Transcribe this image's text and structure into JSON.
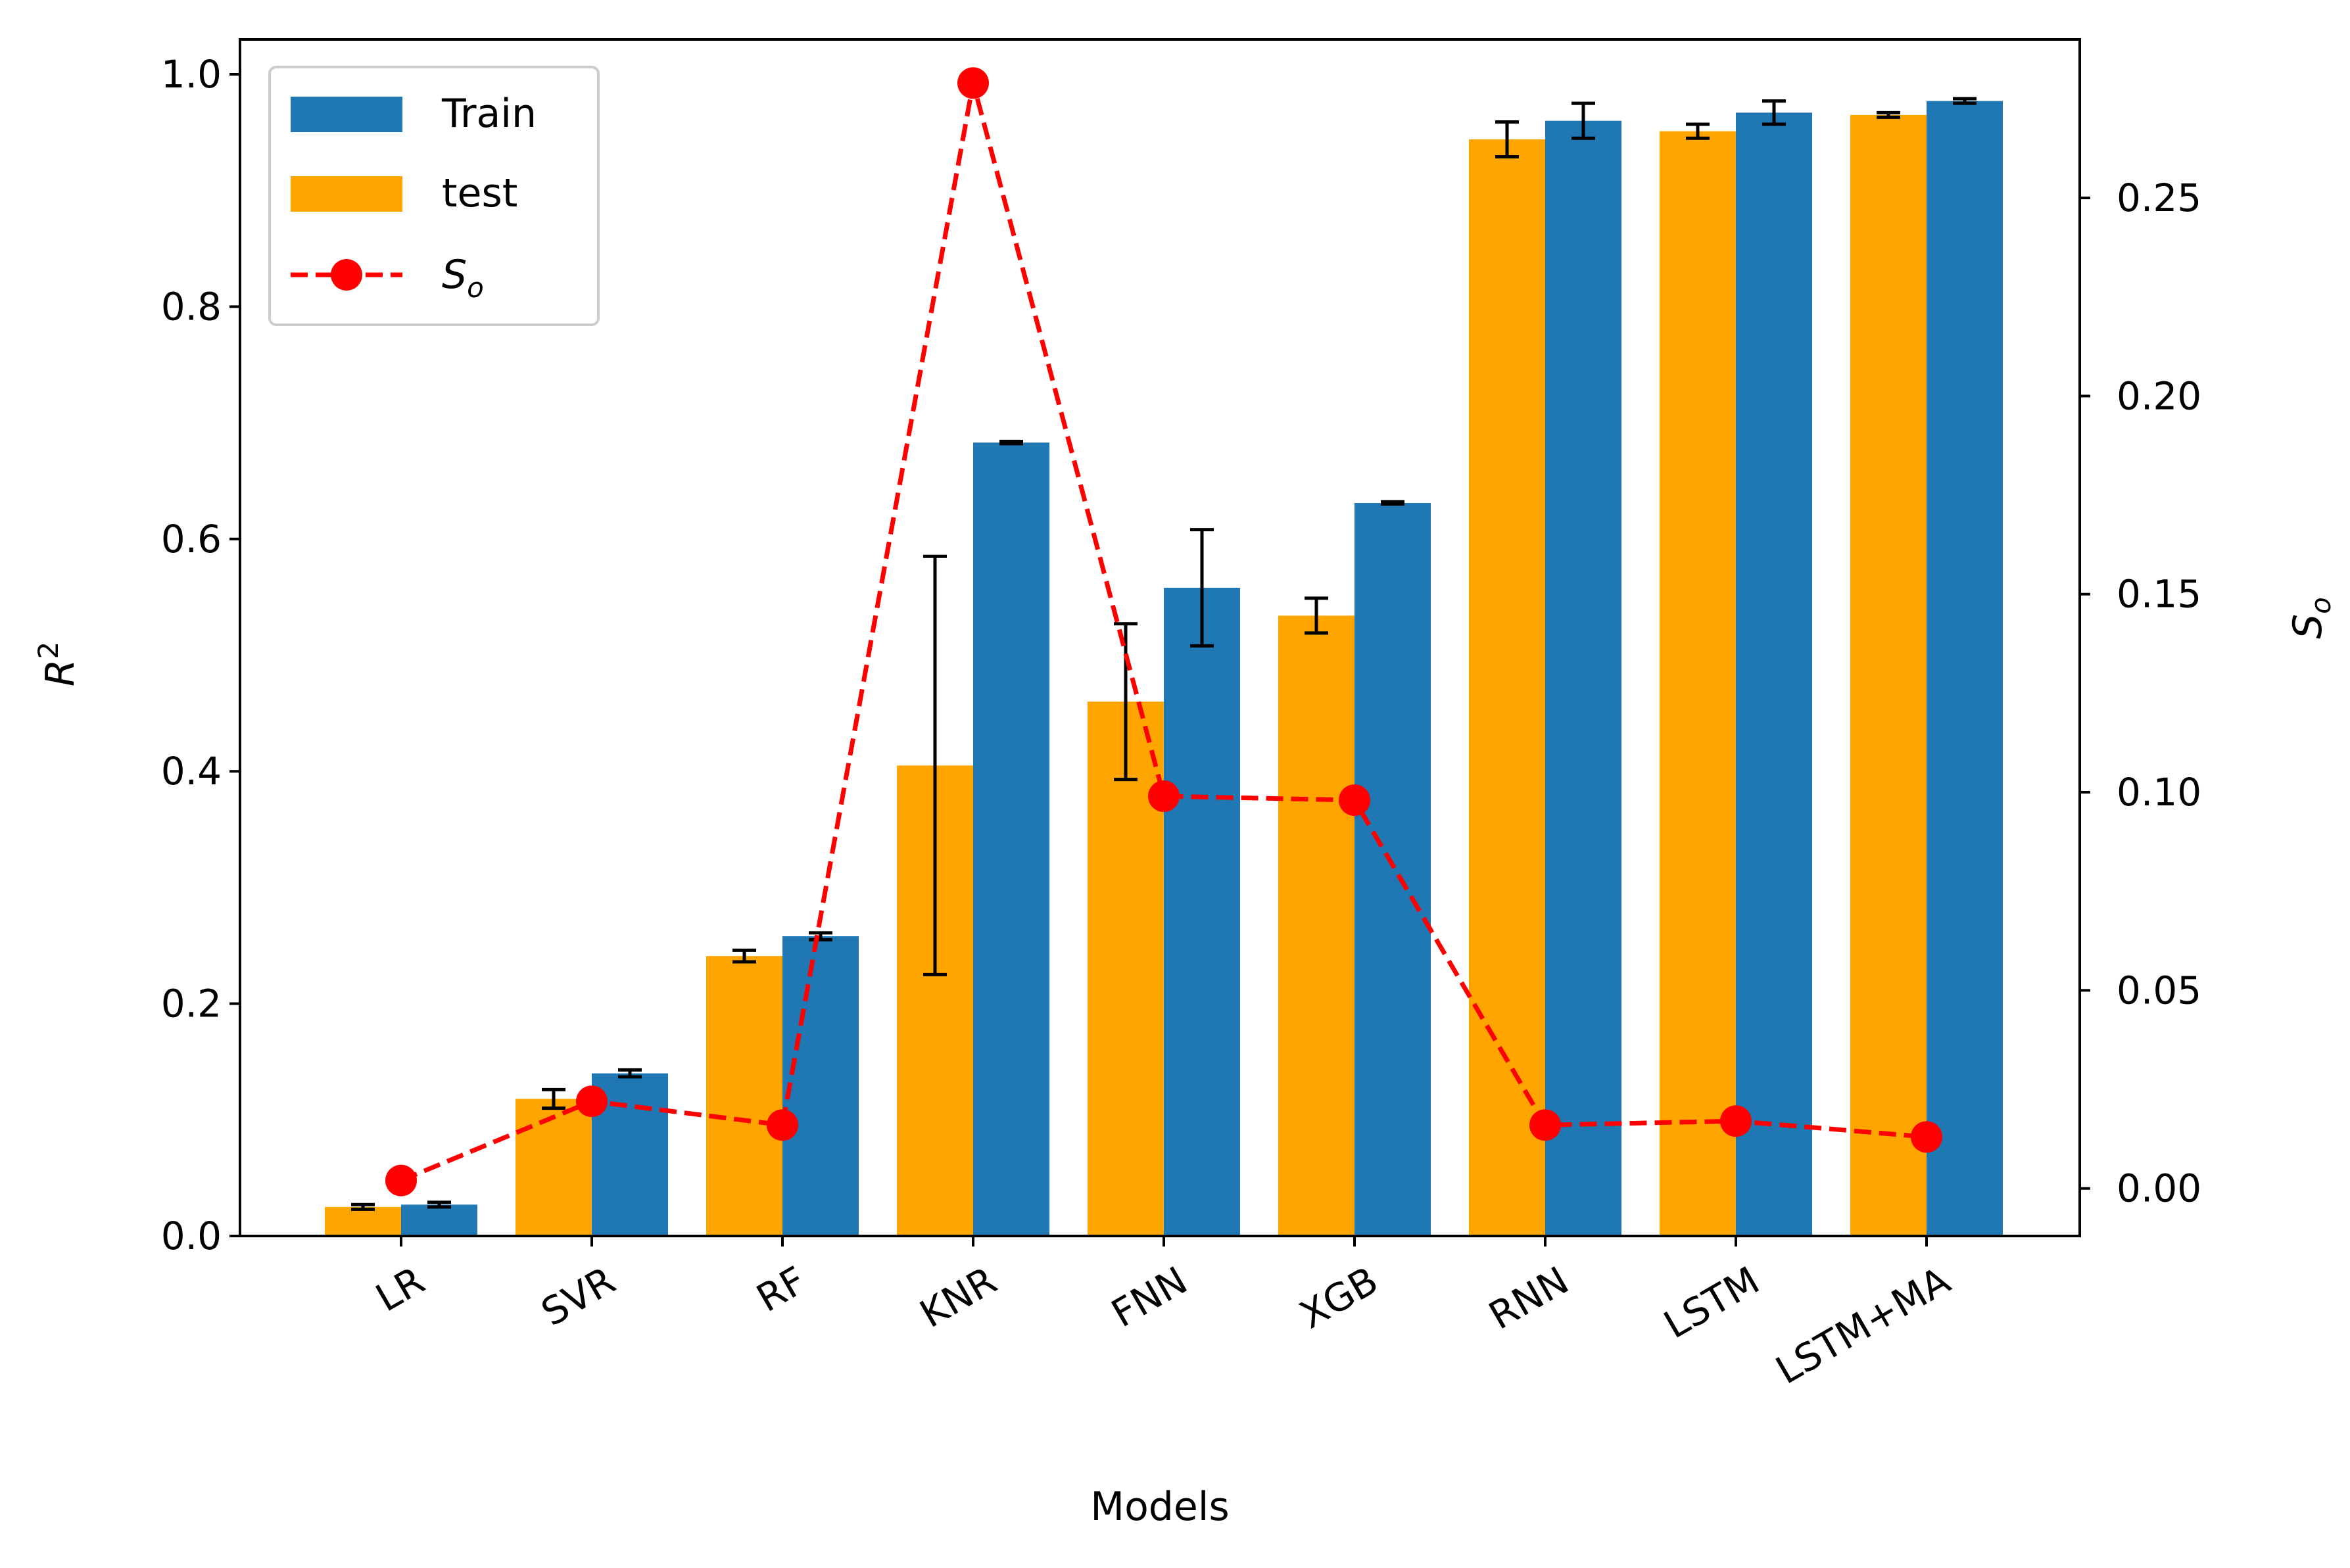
{
  "chart_data": {
    "type": "bar",
    "xlabel": "Models",
    "ylabel": "R",
    "ylabel_sup": "2",
    "y2label": "S",
    "y2label_sub": "o",
    "categories": [
      "LR",
      "SVR",
      "RF",
      "KNR",
      "FNN",
      "XGB",
      "RNN",
      "LSTM",
      "LSTM+MA"
    ],
    "ylim": [
      0,
      1.03
    ],
    "yticks": [
      "0.0",
      "0.2",
      "0.4",
      "0.6",
      "0.8",
      "1.0"
    ],
    "y2lim": [
      -0.012,
      0.29
    ],
    "y2ticks": [
      "0.00",
      "0.05",
      "0.10",
      "0.15",
      "0.20",
      "0.25"
    ],
    "grid": false,
    "legend_position": "top-left",
    "series": [
      {
        "name": "Train",
        "kind": "bar",
        "color": "#1f77b4",
        "values": [
          0.027,
          0.14,
          0.258,
          0.683,
          0.558,
          0.631,
          0.96,
          0.967,
          0.977
        ],
        "errors": [
          0.002,
          0.003,
          0.003,
          0.001,
          0.05,
          0.001,
          0.015,
          0.01,
          0.002
        ]
      },
      {
        "name": "test",
        "kind": "bar",
        "color": "#ffa500",
        "values": [
          0.025,
          0.118,
          0.241,
          0.405,
          0.46,
          0.534,
          0.944,
          0.951,
          0.965
        ],
        "errors": [
          0.002,
          0.008,
          0.005,
          0.18,
          0.067,
          0.015,
          0.015,
          0.006,
          0.002
        ]
      },
      {
        "name": "S",
        "name_sub": "o",
        "kind": "line",
        "axis": "right",
        "color": "#ff0000",
        "values": [
          0.002,
          0.022,
          0.016,
          0.279,
          0.099,
          0.098,
          0.016,
          0.017,
          0.013
        ]
      }
    ]
  }
}
